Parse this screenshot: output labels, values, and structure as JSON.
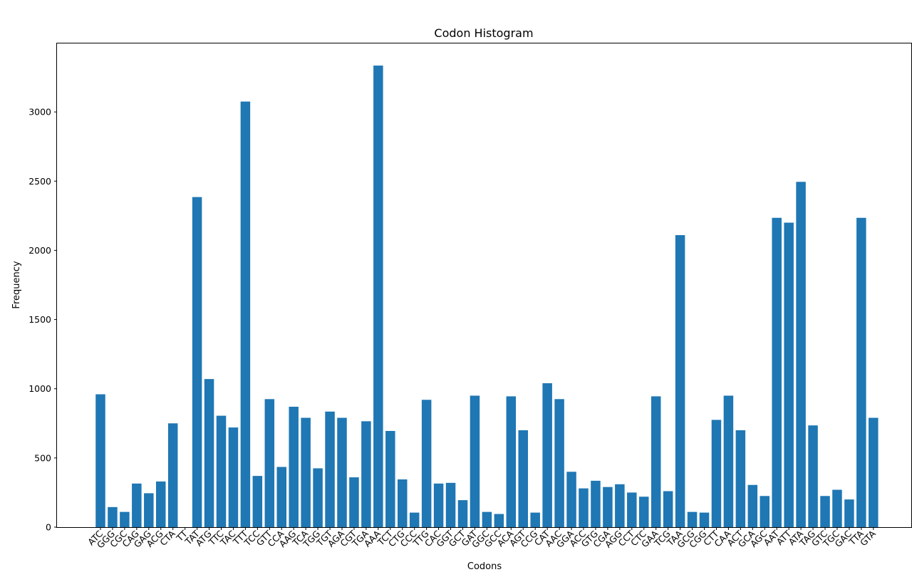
{
  "chart_data": {
    "type": "bar",
    "title": "Codon Histogram",
    "xlabel": "Codons",
    "ylabel": "Frequency",
    "ylim": [
      0,
      3500
    ],
    "yticks": [
      0,
      500,
      1000,
      1500,
      2000,
      2500,
      3000
    ],
    "grid": false,
    "bar_color": "#1f77b4",
    "categories": [
      "ATC",
      "GGG",
      "CGC",
      "CAG",
      "GAG",
      "ACG",
      "CTA",
      "TT",
      "TAT",
      "ATG",
      "TTC",
      "TAC",
      "TTT",
      "TCC",
      "GTT",
      "CCA",
      "AAG",
      "TCA",
      "TGG",
      "TGT",
      "AGA",
      "CGT",
      "TGA",
      "AAA",
      "TCT",
      "CTG",
      "CCC",
      "TTG",
      "CAC",
      "GGT",
      "GCT",
      "GAT",
      "GGC",
      "GCC",
      "ACA",
      "AGT",
      "CCG",
      "CAT",
      "AAC",
      "GGA",
      "ACC",
      "GTG",
      "CGA",
      "AGG",
      "CCT",
      "CTC",
      "GAA",
      "TCG",
      "TAA",
      "GCG",
      "CGG",
      "CTT",
      "CAA",
      "ACT",
      "GCA",
      "AGC",
      "AAT",
      "ATT",
      "ATA",
      "TAG",
      "GTC",
      "TGC",
      "GAC",
      "TTA",
      "GTA"
    ],
    "values": [
      960,
      145,
      110,
      315,
      245,
      330,
      750,
      0,
      2385,
      1070,
      805,
      720,
      3075,
      370,
      925,
      435,
      870,
      790,
      425,
      835,
      790,
      360,
      765,
      3335,
      695,
      345,
      105,
      920,
      315,
      320,
      195,
      950,
      110,
      95,
      945,
      700,
      105,
      1040,
      925,
      400,
      280,
      335,
      290,
      310,
      250,
      220,
      945,
      260,
      2110,
      110,
      105,
      775,
      950,
      700,
      305,
      225,
      2235,
      2200,
      2495,
      735,
      225,
      270,
      200,
      2235,
      790
    ]
  }
}
